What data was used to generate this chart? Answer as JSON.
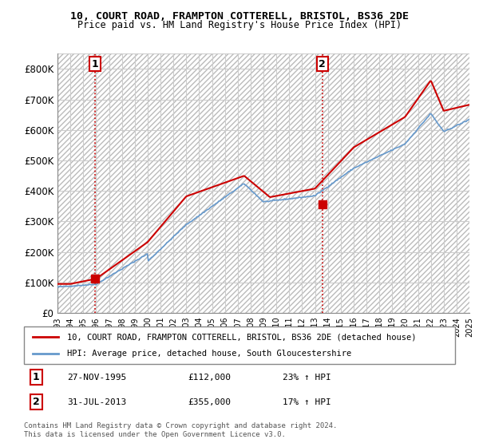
{
  "title_line1": "10, COURT ROAD, FRAMPTON COTTERELL, BRISTOL, BS36 2DE",
  "title_line2": "Price paid vs. HM Land Registry's House Price Index (HPI)",
  "legend_line1": "10, COURT ROAD, FRAMPTON COTTERELL, BRISTOL, BS36 2DE (detached house)",
  "legend_line2": "HPI: Average price, detached house, South Gloucestershire",
  "annotation1_label": "1",
  "annotation1_date": "27-NOV-1995",
  "annotation1_price": "£112,000",
  "annotation1_hpi": "23% ↑ HPI",
  "annotation2_label": "2",
  "annotation2_date": "31-JUL-2013",
  "annotation2_price": "£355,000",
  "annotation2_hpi": "17% ↑ HPI",
  "footer": "Contains HM Land Registry data © Crown copyright and database right 2024.\nThis data is licensed under the Open Government Licence v3.0.",
  "hatch_color": "#cccccc",
  "grid_color": "#cccccc",
  "red_color": "#cc0000",
  "blue_color": "#6699cc",
  "bg_color": "#ffffff",
  "plot_bg": "#f5f5f5",
  "ylim": [
    0,
    850000
  ],
  "yticks": [
    0,
    100000,
    200000,
    300000,
    400000,
    500000,
    600000,
    700000,
    800000
  ],
  "ytick_labels": [
    "£0",
    "£100K",
    "£200K",
    "£300K",
    "£400K",
    "£500K",
    "£600K",
    "£700K",
    "£800K"
  ],
  "sale1_x": 1995.9,
  "sale1_y": 112000,
  "sale2_x": 2013.58,
  "sale2_y": 355000,
  "xmin": 1993,
  "xmax": 2025
}
